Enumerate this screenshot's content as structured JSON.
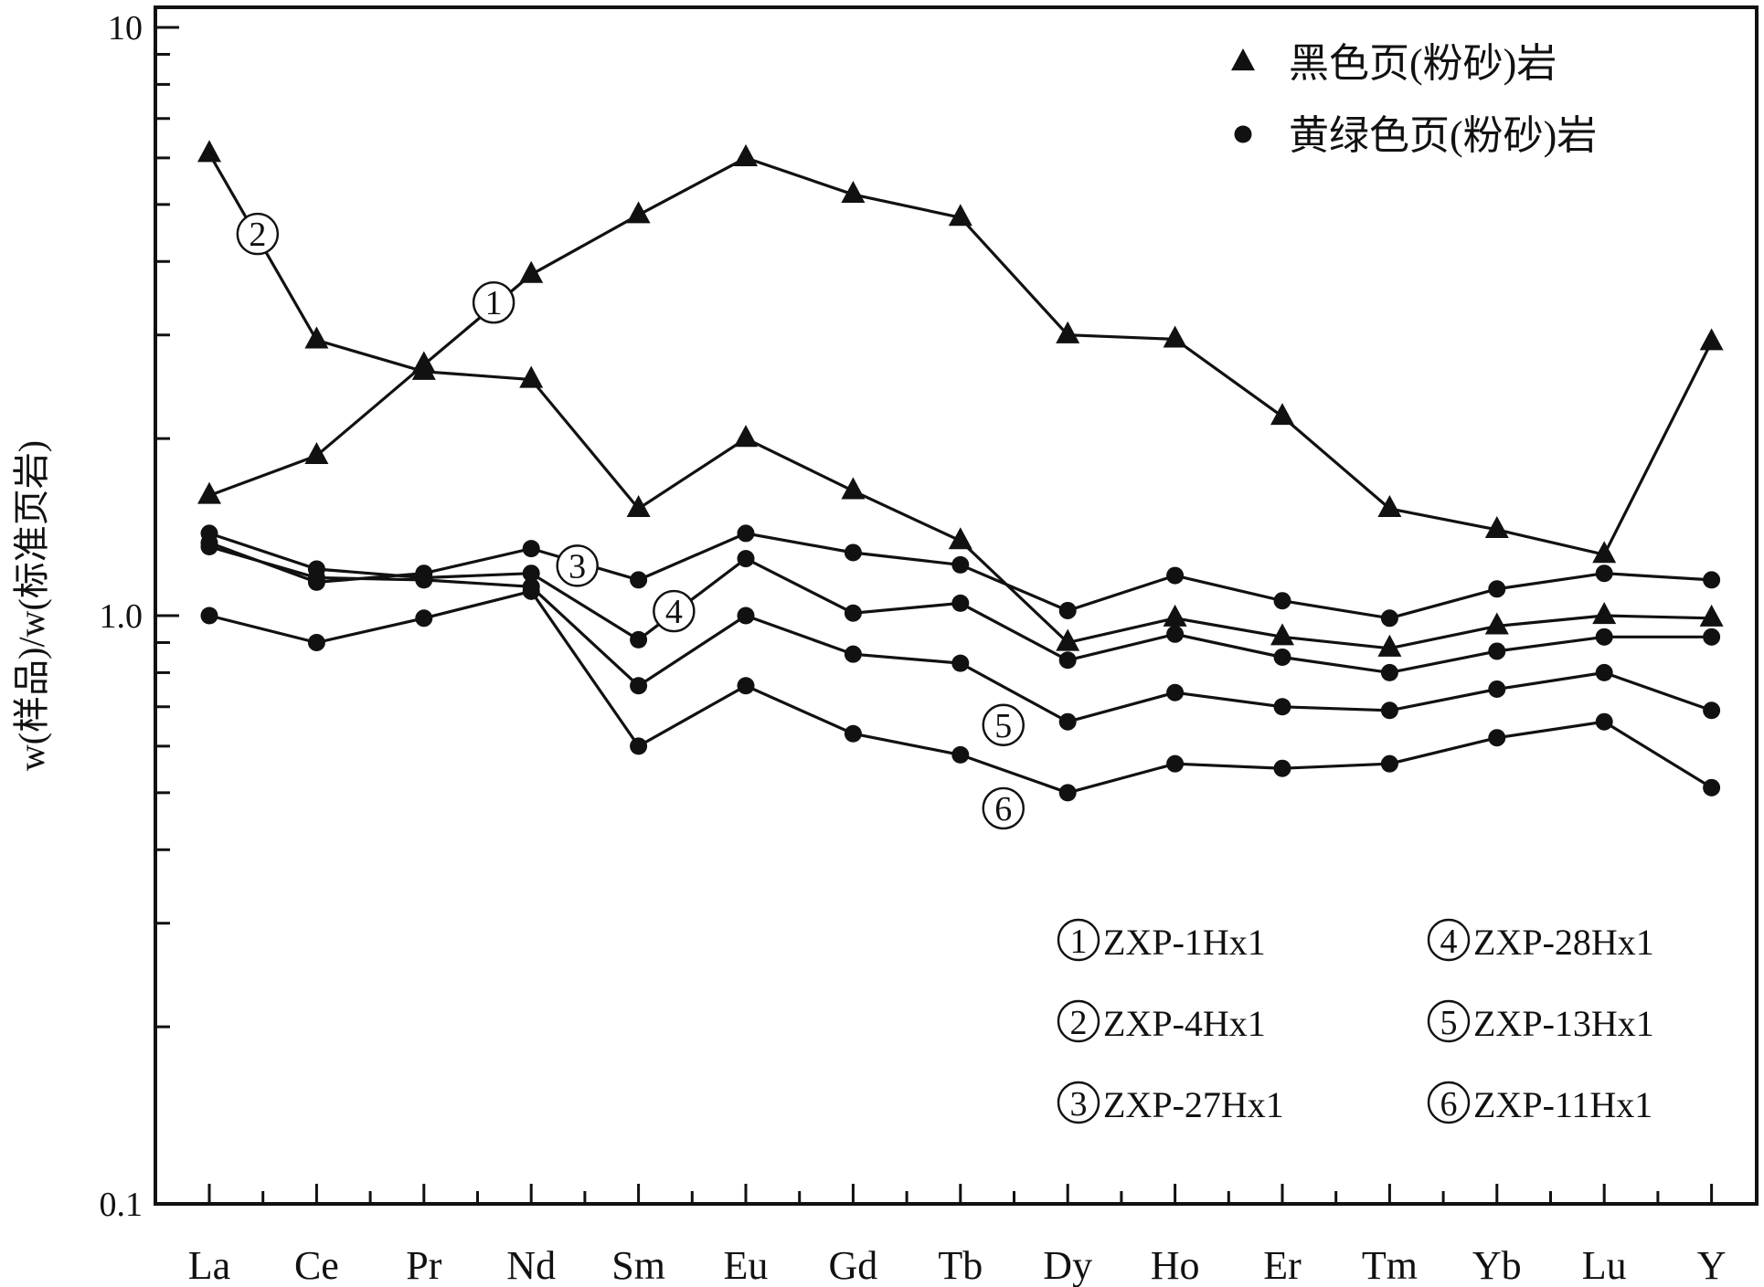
{
  "chart_data": {
    "type": "line",
    "y_scale": "log",
    "ylim": [
      0.1,
      10
    ],
    "yticks": [
      "0.1",
      "1.0",
      "10"
    ],
    "ylabel": "w(样品)/w(标准页岩)",
    "xlabel": "",
    "title": "",
    "grid": false,
    "legend_position": "top-right",
    "categories": [
      "La",
      "Ce",
      "Pr",
      "Nd",
      "Sm",
      "Eu",
      "Gd",
      "Tb",
      "Dy",
      "Ho",
      "Er",
      "Tm",
      "Yb",
      "Lu",
      "Y"
    ],
    "marker_legend": [
      {
        "marker": "triangle",
        "label": "黑色页(粉砂)岩"
      },
      {
        "marker": "circle",
        "label": "黄绿色页(粉砂)岩"
      }
    ],
    "sample_legend": [
      {
        "num": "1",
        "label": "ZXP-1Hx1"
      },
      {
        "num": "4",
        "label": "ZXP-28Hx1"
      },
      {
        "num": "2",
        "label": "ZXP-4Hx1"
      },
      {
        "num": "5",
        "label": "ZXP-13Hx1"
      },
      {
        "num": "3",
        "label": "ZXP-27Hx1"
      },
      {
        "num": "6",
        "label": "ZXP-11Hx1"
      }
    ],
    "series": [
      {
        "id": "1",
        "marker": "triangle",
        "values": [
          1.6,
          1.87,
          2.67,
          3.8,
          4.8,
          6.0,
          5.2,
          4.75,
          3.0,
          2.95,
          2.18,
          1.52,
          1.4,
          1.27,
          2.92
        ]
      },
      {
        "id": "2",
        "marker": "triangle",
        "values": [
          6.1,
          2.94,
          2.6,
          2.52,
          1.52,
          2.0,
          1.63,
          1.34,
          0.9,
          0.99,
          0.92,
          0.88,
          0.96,
          1.0,
          0.99
        ]
      },
      {
        "id": "3",
        "marker": "circle",
        "values": [
          1.33,
          1.14,
          1.18,
          1.3,
          1.15,
          1.38,
          1.28,
          1.22,
          1.02,
          1.17,
          1.06,
          0.99,
          1.11,
          1.18,
          1.15
        ]
      },
      {
        "id": "4",
        "marker": "circle",
        "values": [
          1.38,
          1.2,
          1.16,
          1.18,
          0.91,
          1.25,
          1.01,
          1.05,
          0.84,
          0.93,
          0.85,
          0.8,
          0.87,
          0.92,
          0.92
        ]
      },
      {
        "id": "5",
        "marker": "circle",
        "values": [
          1.31,
          1.16,
          1.15,
          1.12,
          0.76,
          1.0,
          0.86,
          0.83,
          0.66,
          0.74,
          0.7,
          0.69,
          0.75,
          0.8,
          0.69
        ]
      },
      {
        "id": "6",
        "marker": "circle",
        "values": [
          1.0,
          0.9,
          0.99,
          1.1,
          0.6,
          0.76,
          0.63,
          0.58,
          0.5,
          0.56,
          0.55,
          0.56,
          0.62,
          0.66,
          0.51
        ]
      }
    ]
  }
}
